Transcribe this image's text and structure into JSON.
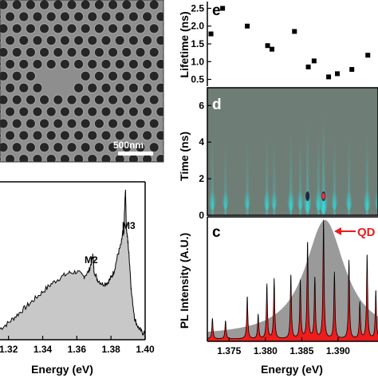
{
  "chart_data": [
    {
      "panel": "sem",
      "type": "image",
      "scale_bar_label": "500nm",
      "colors": {
        "background": "#8e8e8e",
        "holes": "#262626",
        "rim": "#b0b0b0",
        "scale_bar": "#ffffff"
      }
    },
    {
      "panel": "spectrum-left",
      "type": "area",
      "xlabel": "Energy (eV)",
      "ylabel": "",
      "xlim": [
        1.315,
        1.4
      ],
      "x_ticks": [
        "1.32",
        "1.34",
        "1.36",
        "1.38",
        "1.40"
      ],
      "annotations": [
        {
          "text": "M2",
          "x": 1.3695
        },
        {
          "text": "M3",
          "x": 1.3885
        }
      ],
      "x": [
        1.315,
        1.32,
        1.325,
        1.33,
        1.335,
        1.34,
        1.345,
        1.35,
        1.355,
        1.36,
        1.364,
        1.367,
        1.369,
        1.3695,
        1.37,
        1.372,
        1.375,
        1.378,
        1.38,
        1.382,
        1.384,
        1.386,
        1.387,
        1.3875,
        1.388,
        1.3885,
        1.389,
        1.39,
        1.391,
        1.392,
        1.394,
        1.396,
        1.398,
        1.4
      ],
      "values": [
        0.07,
        0.11,
        0.16,
        0.21,
        0.26,
        0.31,
        0.36,
        0.4,
        0.43,
        0.44,
        0.41,
        0.44,
        0.52,
        0.55,
        0.45,
        0.39,
        0.36,
        0.37,
        0.4,
        0.45,
        0.55,
        0.62,
        0.7,
        0.68,
        0.85,
        0.98,
        0.72,
        0.62,
        0.48,
        0.3,
        0.13,
        0.08,
        0.05,
        0.04
      ],
      "colors": {
        "fill": "#c8c8c8",
        "line": "#000000"
      }
    },
    {
      "panel": "e",
      "type": "scatter",
      "label": "e",
      "ylabel": "Lifetime (ns)",
      "ylim": [
        0.4,
        2.6
      ],
      "y_ticks": [
        "0.5",
        "1.0",
        "1.5",
        "2.0",
        "2.5"
      ],
      "x": [
        1.3725,
        1.3741,
        1.3775,
        1.3803,
        1.3809,
        1.384,
        1.3859,
        1.3867,
        1.3887,
        1.3899,
        1.3919,
        1.3941,
        1.3961
      ],
      "values": [
        1.78,
        2.5,
        2.0,
        1.45,
        1.35,
        1.85,
        0.85,
        1.02,
        0.57,
        0.66,
        0.78,
        1.18,
        1.15
      ],
      "colors": {
        "marker": "#000000"
      }
    },
    {
      "panel": "d",
      "type": "heatmap",
      "label": "d",
      "ylabel": "Time (ns)",
      "ylim": [
        0,
        6.8
      ],
      "y_ticks": [
        "0",
        "2",
        "4",
        "6"
      ],
      "streaks": [
        {
          "x": 1.3727,
          "i": 0.55
        },
        {
          "x": 1.3745,
          "i": 0.45
        },
        {
          "x": 1.3775,
          "i": 0.45
        },
        {
          "x": 1.3802,
          "i": 0.55
        },
        {
          "x": 1.3812,
          "i": 0.45
        },
        {
          "x": 1.3835,
          "i": 0.65
        },
        {
          "x": 1.3848,
          "i": 0.5
        },
        {
          "x": 1.3858,
          "i": 0.85
        },
        {
          "x": 1.3873,
          "i": 0.6
        },
        {
          "x": 1.388,
          "i": 1.0
        },
        {
          "x": 1.3895,
          "i": 0.5
        },
        {
          "x": 1.3915,
          "i": 0.55
        },
        {
          "x": 1.394,
          "i": 0.65
        },
        {
          "x": 1.3955,
          "i": 0.5
        }
      ],
      "colors": {
        "background": "#6e7d75",
        "streak": "#2ee0e0",
        "hot": "#ff3030"
      }
    },
    {
      "panel": "c",
      "type": "line",
      "label": "c",
      "xlabel": "Energy (eV)",
      "ylabel": "PL Intensity (A.U.)",
      "xlim": [
        1.372,
        1.3955
      ],
      "x_ticks": [
        "1.375",
        "1.380",
        "1.385",
        "1.390"
      ],
      "annotation": "QD",
      "background_peak": {
        "center": 1.3882,
        "width": 0.0042,
        "height": 0.96
      },
      "peaks": [
        {
          "x": 1.3727,
          "h": 0.17
        },
        {
          "x": 1.3745,
          "h": 0.15
        },
        {
          "x": 1.3775,
          "h": 0.35
        },
        {
          "x": 1.379,
          "h": 0.2
        },
        {
          "x": 1.3802,
          "h": 0.45
        },
        {
          "x": 1.3812,
          "h": 0.5
        },
        {
          "x": 1.3835,
          "h": 0.53
        },
        {
          "x": 1.3848,
          "h": 0.48
        },
        {
          "x": 1.3858,
          "h": 0.8
        },
        {
          "x": 1.3868,
          "h": 0.5
        },
        {
          "x": 1.388,
          "h": 0.98
        },
        {
          "x": 1.3895,
          "h": 0.55
        },
        {
          "x": 1.3915,
          "h": 0.65
        },
        {
          "x": 1.393,
          "h": 0.3
        },
        {
          "x": 1.394,
          "h": 0.7
        },
        {
          "x": 1.3952,
          "h": 0.4
        }
      ],
      "colors": {
        "envelope": "#9a9a9a",
        "fill": "#ee1c1c",
        "line": "#000000",
        "qd_arrow": "#ee1c1c"
      }
    }
  ]
}
